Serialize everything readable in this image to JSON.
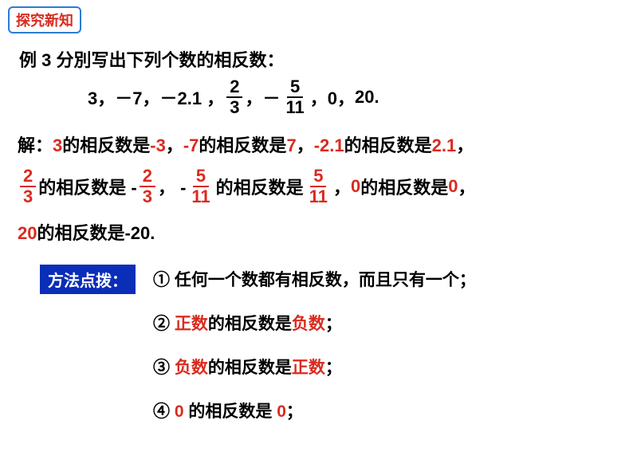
{
  "badge": "探究新知",
  "example": {
    "title": "例 3  分別写出下列个数的相反数：",
    "list": {
      "n1": "3，",
      "n2": "－7，",
      "n3": "－2.1 ，",
      "frac1_num": "2",
      "frac1_den": "3",
      "sep1": " ，－",
      "frac2_num": "5",
      "frac2_den": "11",
      "sep2": "，0，",
      "n4": " 20."
    }
  },
  "solution": {
    "prefix": "解：",
    "s1_a": "3",
    "s1_b": "的相反数是",
    "s1_c": "-3",
    "comma": "，",
    "s2_a": "-7",
    "s2_b": "的相反数是",
    "s2_c": "7",
    "s3_a": "-2.1",
    "s3_b": "的相反数是",
    "s3_c": "2.1",
    "line2": {
      "f1n": "2",
      "f1d": "3",
      "txt1": " 的相反数是 -",
      "f2n": "2",
      "f2d": "3",
      "sep1": "，  - ",
      "f3n": "5",
      "f3d": "11",
      "txt2": " 的相反数是 ",
      "f4n": "5",
      "f4d": "11",
      "sep2": "   ，",
      "z1": "0",
      "txt3": "的相反数是",
      "z2": "0",
      "comma": "，"
    },
    "line3_a": "20",
    "line3_b": "的相反数是-20."
  },
  "tips": {
    "label": "方法点拨：",
    "t1": "① 任何一个数都有相反数，而且只有一个；",
    "t2_a": "② ",
    "t2_b": "正数",
    "t2_c": "的相反数是",
    "t2_d": "负数",
    "t2_e": "；",
    "t3_a": "③ ",
    "t3_b": "负数",
    "t3_c": "的相反数是",
    "t3_d": "正数",
    "t3_e": "；",
    "t4_a": "④ ",
    "t4_b": "0",
    "t4_c": " 的相反数是 ",
    "t4_d": "0",
    "t4_e": "；"
  },
  "colors": {
    "red": "#d92b1f",
    "blue_box": "#0a2eb8",
    "badge_border": "#2b7cd6"
  }
}
